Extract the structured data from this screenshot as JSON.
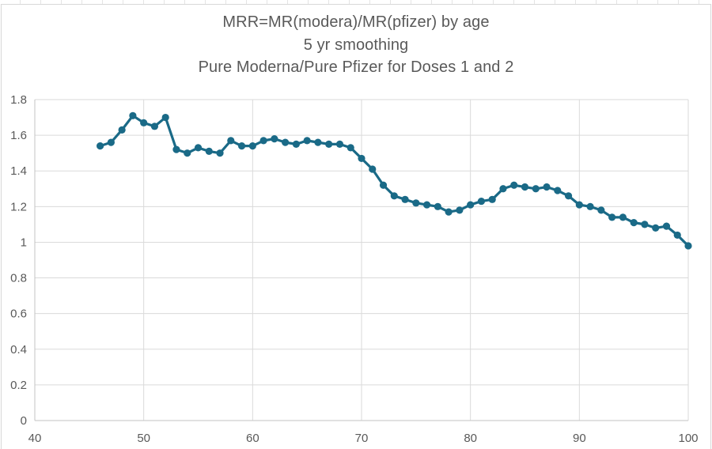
{
  "chart_data": {
    "type": "line",
    "title_lines": [
      "MRR=MR(modera)/MR(pfizer) by age",
      "5 yr smoothing",
      "Pure Moderna/Pure Pfizer for Doses 1 and 2"
    ],
    "xlabel": "",
    "ylabel": "",
    "x": [
      46,
      47,
      48,
      49,
      50,
      51,
      52,
      53,
      54,
      55,
      56,
      57,
      58,
      59,
      60,
      61,
      62,
      63,
      64,
      65,
      66,
      67,
      68,
      69,
      70,
      71,
      72,
      73,
      74,
      75,
      76,
      77,
      78,
      79,
      80,
      81,
      82,
      83,
      84,
      85,
      86,
      87,
      88,
      89,
      90,
      91,
      92,
      93,
      94,
      95,
      96,
      97,
      98,
      99,
      100
    ],
    "series": [
      {
        "name": "MRR",
        "values": [
          1.54,
          1.56,
          1.63,
          1.71,
          1.67,
          1.65,
          1.7,
          1.52,
          1.5,
          1.53,
          1.51,
          1.5,
          1.57,
          1.54,
          1.54,
          1.57,
          1.58,
          1.56,
          1.55,
          1.57,
          1.56,
          1.55,
          1.55,
          1.53,
          1.47,
          1.41,
          1.32,
          1.26,
          1.24,
          1.22,
          1.21,
          1.2,
          1.17,
          1.18,
          1.21,
          1.23,
          1.24,
          1.3,
          1.32,
          1.31,
          1.3,
          1.31,
          1.29,
          1.26,
          1.21,
          1.2,
          1.18,
          1.14,
          1.14,
          1.11,
          1.1,
          1.08,
          1.09,
          1.04,
          0.98
        ]
      }
    ],
    "xlim": [
      40,
      100
    ],
    "ylim": [
      0,
      1.8
    ],
    "x_ticks": [
      40,
      50,
      60,
      70,
      80,
      90,
      100
    ],
    "x_tick_labels": [
      "40",
      "50",
      "60",
      "70",
      "80",
      "90",
      "100"
    ],
    "y_ticks": [
      0,
      0.2,
      0.4,
      0.6,
      0.8,
      1.0,
      1.2,
      1.4,
      1.6,
      1.8
    ],
    "y_tick_labels": [
      "0",
      "0.2",
      "0.4",
      "0.6",
      "0.8",
      "1",
      "1.2",
      "1.4",
      "1.6",
      "1.8"
    ],
    "grid": true,
    "legend": "none",
    "marker": "circle",
    "colors": {
      "line": "#1a6a87",
      "marker": "#1a6a87",
      "gridline": "#dadada",
      "axis_line": "#c3c3c3",
      "tick_label": "#595959",
      "title": "#595959",
      "plot_background": "#ffffff"
    }
  }
}
